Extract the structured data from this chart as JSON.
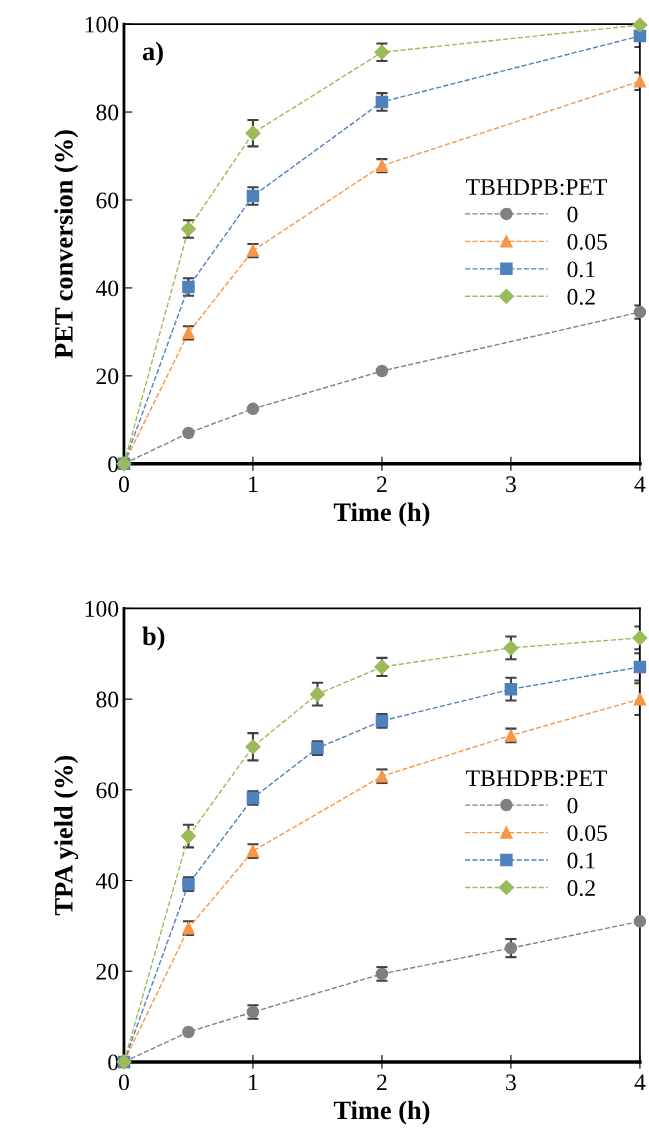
{
  "chart_data": [
    {
      "type": "line",
      "xlabel": "Time (h)",
      "ylabel": "PET conversion (%)",
      "annotations": [
        "a)"
      ],
      "legend_title": "TBHDPB:PET",
      "legend": "right",
      "xlim": [
        0,
        4
      ],
      "xticks": [
        0,
        1,
        2,
        3,
        4
      ],
      "ylim": [
        0,
        100
      ],
      "yticks": [
        0,
        20,
        40,
        60,
        80,
        100
      ],
      "grid": false,
      "line_style": "dashed",
      "x": [
        0,
        0.5,
        1,
        2,
        4
      ],
      "series": [
        {
          "name": "0",
          "color": "#808080",
          "marker": "circle",
          "values": [
            0,
            7,
            12.5,
            21.1,
            34.5
          ],
          "errors": [
            null,
            null,
            null,
            null,
            1.5
          ]
        },
        {
          "name": "0.05",
          "color": "#f79646",
          "marker": "triangle",
          "values": [
            0,
            29.8,
            48.5,
            67.8,
            87
          ],
          "errors": [
            null,
            1.5,
            1.5,
            1.5,
            2
          ]
        },
        {
          "name": "0.1",
          "color": "#4f81bd",
          "marker": "square",
          "values": [
            0,
            40.2,
            60.9,
            82.3,
            97.3
          ],
          "errors": [
            null,
            2,
            2,
            2,
            2.5
          ]
        },
        {
          "name": "0.2",
          "color": "#9bbb59",
          "marker": "diamond",
          "values": [
            0,
            53.4,
            75.2,
            93.6,
            99.8
          ],
          "errors": [
            null,
            2,
            3,
            2,
            null
          ]
        }
      ]
    },
    {
      "type": "line",
      "xlabel": "Time (h)",
      "ylabel": "TPA yield (%)",
      "annotations": [
        "b)"
      ],
      "legend_title": "TBHDPB:PET",
      "legend": "right",
      "xlim": [
        0,
        4
      ],
      "xticks": [
        0,
        1,
        2,
        3,
        4
      ],
      "ylim": [
        0,
        100
      ],
      "yticks": [
        0,
        20,
        40,
        60,
        80,
        100
      ],
      "grid": false,
      "line_style": "dashed",
      "x": [
        0,
        0.5,
        1,
        1.5,
        2,
        3,
        4
      ],
      "series": [
        {
          "name": "0",
          "color": "#808080",
          "marker": "circle",
          "values": [
            0,
            6.6,
            11,
            null,
            19.4,
            25.1,
            31
          ],
          "errors": [
            null,
            null,
            1.5,
            null,
            1.5,
            2,
            null
          ]
        },
        {
          "name": "0.05",
          "color": "#f79646",
          "marker": "triangle",
          "values": [
            0,
            29.5,
            46.5,
            null,
            63,
            72,
            80
          ],
          "errors": [
            null,
            1.5,
            1.5,
            null,
            1.5,
            1.5,
            3.5
          ]
        },
        {
          "name": "0.1",
          "color": "#4f81bd",
          "marker": "square",
          "values": [
            0,
            39.2,
            58.2,
            69.2,
            75.2,
            82.2,
            87.1
          ],
          "errors": [
            null,
            1.5,
            1.5,
            1.5,
            1.5,
            2.5,
            3
          ]
        },
        {
          "name": "0.2",
          "color": "#9bbb59",
          "marker": "diamond",
          "values": [
            0,
            49.8,
            69.5,
            81.1,
            87.1,
            91.3,
            93.5
          ],
          "errors": [
            null,
            2.5,
            3,
            2.5,
            2,
            2.5,
            2.5
          ]
        }
      ]
    }
  ]
}
